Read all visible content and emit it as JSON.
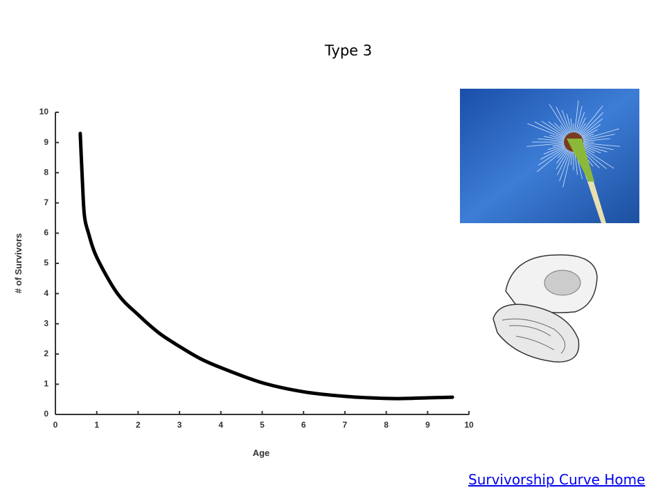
{
  "chart_data": {
    "type": "line",
    "title": "Type 3",
    "x": [
      0.6,
      0.65,
      0.7,
      0.8,
      1,
      1.5,
      2,
      2.5,
      3,
      3.5,
      4,
      5,
      6,
      7,
      8,
      8.5,
      9,
      9.6
    ],
    "values": [
      9.3,
      7.8,
      6.6,
      6.0,
      5.2,
      4.0,
      3.3,
      2.7,
      2.25,
      1.85,
      1.55,
      1.05,
      0.75,
      0.6,
      0.53,
      0.53,
      0.55,
      0.57
    ],
    "color": "#000000",
    "x_label": "Age",
    "y_label": "# of Survivors",
    "xlim": [
      0,
      10
    ],
    "ylim": [
      0,
      10
    ],
    "xticks": [
      0,
      1,
      2,
      3,
      4,
      5,
      6,
      7,
      8,
      9,
      10
    ],
    "yticks": [
      0,
      1,
      2,
      3,
      4,
      5,
      6,
      7,
      8,
      9,
      10
    ]
  },
  "link": "Survivorship Curve Home"
}
